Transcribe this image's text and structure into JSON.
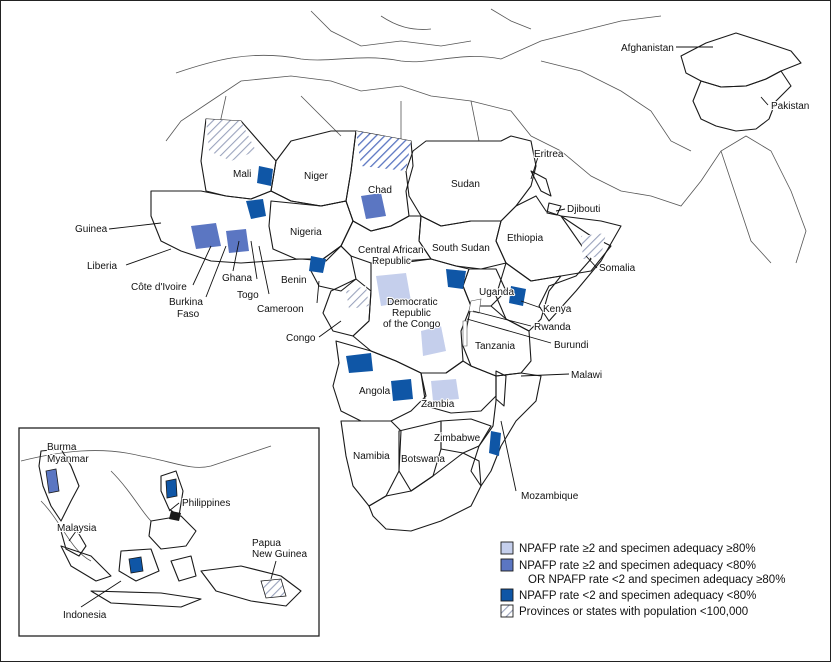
{
  "legend": {
    "items": [
      {
        "key": "high",
        "label": "NPAFP rate ≥2 and specimen adequacy ≥80%",
        "color": "#c5cfec"
      },
      {
        "key": "mid",
        "label": "NPAFP rate ≥2 and specimen adequacy <80%",
        "label2": "OR NPAFP rate <2 and specimen adequacy ≥80%",
        "color": "#5b76c2"
      },
      {
        "key": "low",
        "label": "NPAFP rate <2 and specimen adequacy <80%",
        "color": "#0f56a6"
      },
      {
        "key": "hatch",
        "label": "Provinces or states with population <100,000",
        "color": "hatched"
      }
    ]
  },
  "labels": {
    "afghanistan": "Afghanistan",
    "pakistan": "Pakistan",
    "eritrea": "Eritrea",
    "mali": "Mali",
    "niger": "Niger",
    "chad": "Chad",
    "sudan": "Sudan",
    "djibouti": "Djibouti",
    "guinea": "Guinea",
    "nigeria": "Nigeria",
    "south_sudan": "South Sudan",
    "ethiopia": "Ethiopia",
    "car": "Central African Republic",
    "car_1": "Central African",
    "car_2": "Republic",
    "somalia": "Somalia",
    "liberia": "Liberia",
    "ghana": "Ghana",
    "benin": "Benin",
    "drc_1": "Democratic",
    "drc_2": "Republic",
    "drc_3": "of the Congo",
    "uganda": "Uganda",
    "cote_divoire": "Côte d'Ivoire",
    "togo": "Togo",
    "kenya": "Kenya",
    "burkina_1": "Burkina",
    "burkina_2": "Faso",
    "cameroon": "Cameroon",
    "rwanda": "Rwanda",
    "congo": "Congo",
    "burundi": "Burundi",
    "tanzania": "Tanzania",
    "malawi": "Malawi",
    "angola": "Angola",
    "zambia": "Zambia",
    "zimbabwe": "Zimbabwe",
    "namibia": "Namibia",
    "botswana": "Botswana",
    "mozambique": "Mozambique",
    "burma_1": "Burma",
    "burma_2": "Myanmar",
    "philippines": "Philippines",
    "malaysia": "Malaysia",
    "png_1": "Papua",
    "png_2": "New Guinea",
    "indonesia": "Indonesia"
  },
  "colors": {
    "high": "#c5cfec",
    "mid": "#5b76c2",
    "low": "#0f56a6",
    "outline": "#1a1a1a",
    "background": "#ffffff"
  }
}
